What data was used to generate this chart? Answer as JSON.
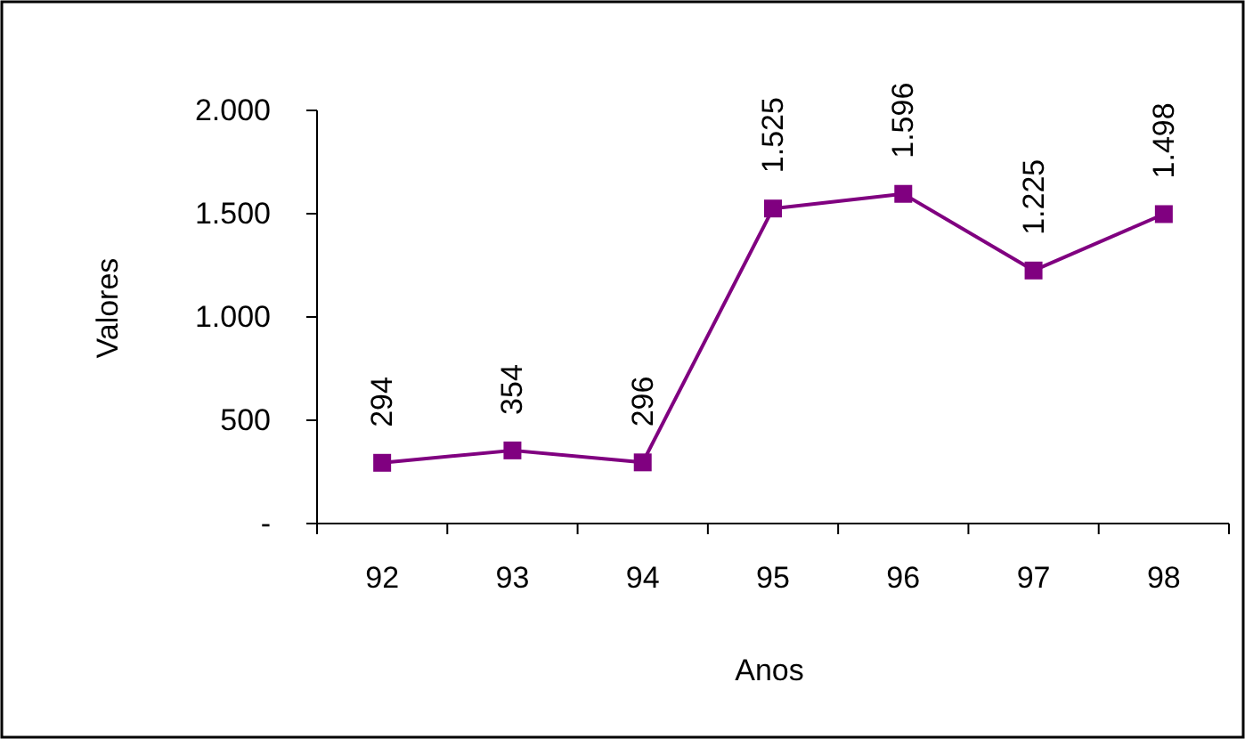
{
  "chart_data": {
    "type": "line",
    "xlabel": "Anos",
    "ylabel": "Valores",
    "categories": [
      "92",
      "93",
      "94",
      "95",
      "96",
      "97",
      "98"
    ],
    "series": [
      {
        "color": "#800080",
        "values": [
          294,
          354,
          296,
          1525,
          1596,
          1225,
          1498
        ],
        "value_labels": [
          "294",
          "354",
          "296",
          "1.525",
          "1.596",
          "1.225",
          "1.498"
        ]
      }
    ],
    "ylim": [
      0,
      2000
    ],
    "yticks": [
      {
        "value": 0,
        "label": "-"
      },
      {
        "value": 500,
        "label": "500"
      },
      {
        "value": 1000,
        "label": "1.000"
      },
      {
        "value": 1500,
        "label": "1.500"
      },
      {
        "value": 2000,
        "label": "2.000"
      }
    ],
    "marker": "square",
    "line_style": "solid"
  }
}
